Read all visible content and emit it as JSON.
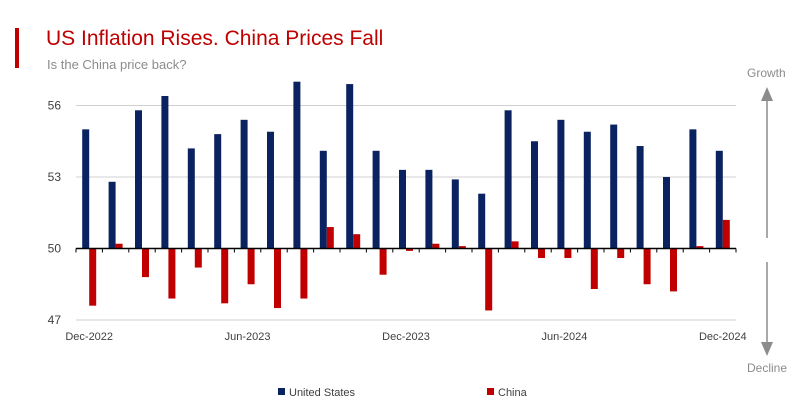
{
  "header": {
    "title": "US Inflation Rises. China Prices Fall",
    "subtitle": "Is the China price back?"
  },
  "annotations": {
    "growth": "Growth",
    "decline": "Decline"
  },
  "colors": {
    "accent": "#c00000",
    "us": "#0b2260",
    "china": "#c00000",
    "grid": "#d0d0d0",
    "axis": "#000000",
    "arrow": "#8c8c8c"
  },
  "chart_data": {
    "type": "bar",
    "title": "US Inflation Rises. China Prices Fall",
    "subtitle": "Is the China price back?",
    "xlabel": "",
    "ylabel": "",
    "ylim": [
      47,
      57.5
    ],
    "baseline": 50,
    "yticks": [
      47,
      50,
      53,
      56
    ],
    "grid": true,
    "legend_position": "bottom",
    "categories": [
      "Dec-2022",
      "Jan-2023",
      "Feb-2023",
      "Mar-2023",
      "Apr-2023",
      "May-2023",
      "Jun-2023",
      "Jul-2023",
      "Aug-2023",
      "Sep-2023",
      "Oct-2023",
      "Nov-2023",
      "Dec-2023",
      "Jan-2024",
      "Feb-2024",
      "Mar-2024",
      "Apr-2024",
      "May-2024",
      "Jun-2024",
      "Jul-2024",
      "Aug-2024",
      "Sep-2024",
      "Oct-2024",
      "Nov-2024",
      "Dec-2024"
    ],
    "xtick_labels": [
      {
        "index": 0,
        "label": "Dec-2022"
      },
      {
        "index": 6,
        "label": "Jun-2023"
      },
      {
        "index": 12,
        "label": "Dec-2023"
      },
      {
        "index": 18,
        "label": "Jun-2024"
      },
      {
        "index": 24,
        "label": "Dec-2024"
      }
    ],
    "series": [
      {
        "name": "United States",
        "color": "#0b2260",
        "values": [
          55.0,
          52.8,
          55.8,
          56.4,
          54.2,
          54.8,
          55.4,
          54.9,
          57.0,
          54.1,
          56.9,
          54.1,
          53.3,
          53.3,
          52.9,
          52.3,
          55.8,
          54.5,
          55.4,
          54.9,
          55.2,
          54.3,
          53.0,
          55.0,
          54.1
        ]
      },
      {
        "name": "China",
        "color": "#c00000",
        "values": [
          47.6,
          50.2,
          48.8,
          47.9,
          49.2,
          47.7,
          48.5,
          47.5,
          47.9,
          50.9,
          50.6,
          48.9,
          49.9,
          50.2,
          50.1,
          47.4,
          50.3,
          49.6,
          49.6,
          48.3,
          49.6,
          48.5,
          48.2,
          50.1,
          51.2
        ]
      }
    ]
  }
}
